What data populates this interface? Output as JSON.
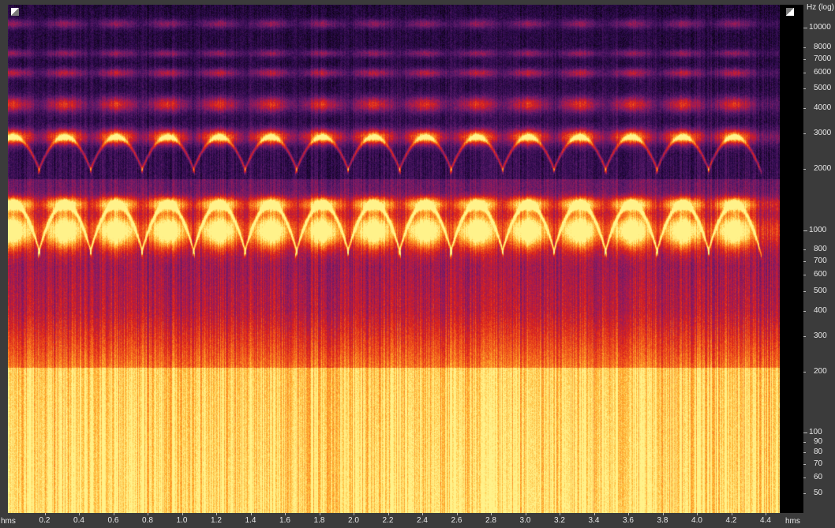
{
  "window": {
    "mode": "spectrogram"
  },
  "frequency_axis": {
    "unit_label": "Hz (log)",
    "scale": "log",
    "range_hz": [
      40,
      13000
    ],
    "ticks": [
      {
        "value": 10000,
        "label": "10000",
        "major": true
      },
      {
        "value": 8000,
        "label": "8000",
        "major": false
      },
      {
        "value": 7000,
        "label": "7000",
        "major": false
      },
      {
        "value": 6000,
        "label": "6000",
        "major": false
      },
      {
        "value": 5000,
        "label": "5000",
        "major": false
      },
      {
        "value": 4000,
        "label": "4000",
        "major": false
      },
      {
        "value": 3000,
        "label": "3000",
        "major": false
      },
      {
        "value": 2000,
        "label": "2000",
        "major": false
      },
      {
        "value": 1000,
        "label": "1000",
        "major": true
      },
      {
        "value": 800,
        "label": "800",
        "major": false
      },
      {
        "value": 700,
        "label": "700",
        "major": false
      },
      {
        "value": 600,
        "label": "600",
        "major": false
      },
      {
        "value": 500,
        "label": "500",
        "major": false
      },
      {
        "value": 400,
        "label": "400",
        "major": false
      },
      {
        "value": 300,
        "label": "300",
        "major": false
      },
      {
        "value": 200,
        "label": "200",
        "major": false
      },
      {
        "value": 100,
        "label": "100",
        "major": true
      },
      {
        "value": 90,
        "label": "90",
        "major": false
      },
      {
        "value": 80,
        "label": "80",
        "major": false
      },
      {
        "value": 70,
        "label": "70",
        "major": false
      },
      {
        "value": 60,
        "label": "60",
        "major": false
      },
      {
        "value": 50,
        "label": "50",
        "major": false
      }
    ]
  },
  "time_axis": {
    "unit_left": "hms",
    "unit_right": "hms",
    "range_s": [
      0.0,
      4.5
    ],
    "ticks": [
      {
        "value": 0.2,
        "label": "0.2"
      },
      {
        "value": 0.4,
        "label": "0.4"
      },
      {
        "value": 0.6,
        "label": "0.6"
      },
      {
        "value": 0.8,
        "label": "0.8"
      },
      {
        "value": 1.0,
        "label": "1.0"
      },
      {
        "value": 1.2,
        "label": "1.2"
      },
      {
        "value": 1.4,
        "label": "1.4"
      },
      {
        "value": 1.6,
        "label": "1.6"
      },
      {
        "value": 1.8,
        "label": "1.8"
      },
      {
        "value": 2.0,
        "label": "2.0"
      },
      {
        "value": 2.2,
        "label": "2.2"
      },
      {
        "value": 2.4,
        "label": "2.4"
      },
      {
        "value": 2.6,
        "label": "2.6"
      },
      {
        "value": 2.8,
        "label": "2.8"
      },
      {
        "value": 3.0,
        "label": "3.0"
      },
      {
        "value": 3.2,
        "label": "3.2"
      },
      {
        "value": 3.4,
        "label": "3.4"
      },
      {
        "value": 3.6,
        "label": "3.6"
      },
      {
        "value": 3.8,
        "label": "3.8"
      },
      {
        "value": 4.0,
        "label": "4.0"
      },
      {
        "value": 4.2,
        "label": "4.2"
      },
      {
        "value": 4.4,
        "label": "4.4"
      }
    ]
  },
  "spectrogram": {
    "colormap": [
      "#000000",
      "#2a0a4a",
      "#5a1a6a",
      "#9a1a5a",
      "#d8201e",
      "#f4601a",
      "#ffb030",
      "#fff28a"
    ],
    "end_time_s": 4.5,
    "call_count": 15,
    "call_period_s": 0.3
  },
  "icons": {
    "left_corner": "zoom-corner-icon",
    "right_corner": "zoom-corner-icon"
  }
}
